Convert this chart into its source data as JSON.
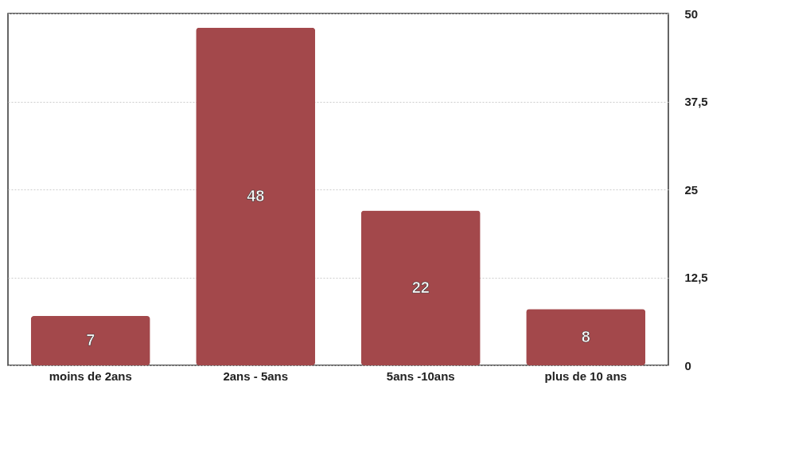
{
  "chart_data": {
    "type": "bar",
    "categories": [
      "moins de 2ans",
      "2ans - 5ans",
      "5ans -10ans",
      "plus de 10 ans"
    ],
    "values": [
      7,
      48,
      22,
      8
    ],
    "color": "#a3484b",
    "ylim": [
      0,
      50
    ],
    "yticks": [
      0,
      {
        "value": 12.5,
        "label": "12,5"
      },
      25,
      {
        "value": 37.5,
        "label": "37,5"
      },
      50
    ],
    "grid": "y",
    "data_labels": true
  }
}
